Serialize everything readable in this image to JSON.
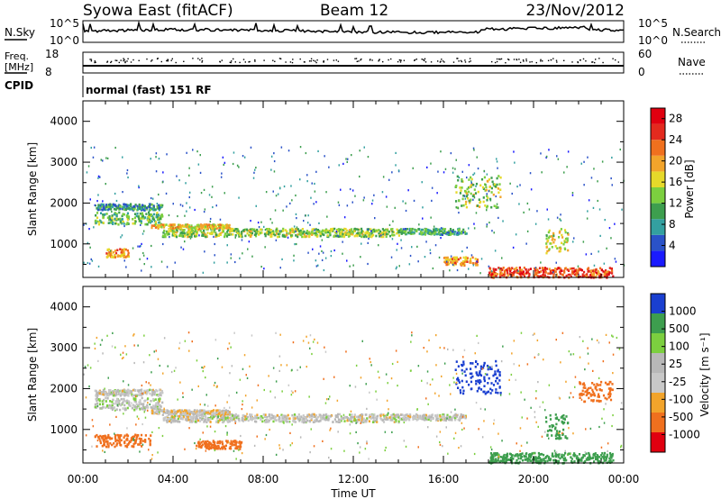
{
  "header": {
    "station": "Syowa East (fitACF)",
    "beam": "Beam 12",
    "date": "23/Nov/2012"
  },
  "summary_panels": {
    "nsky": {
      "label": "N.Sky",
      "ticks": [
        "10^5",
        "10^0"
      ]
    },
    "nsearch": {
      "label": "N.Search",
      "ticks": [
        "10^5",
        "10^0"
      ]
    },
    "freq": {
      "label_line1": "Freq.",
      "label_line2": "[MHz]",
      "ticks": [
        "18",
        "8"
      ]
    },
    "nave": {
      "label": "Nave",
      "ticks": [
        "60",
        "0"
      ]
    },
    "cpid": {
      "label": "CPID",
      "text": "normal (fast) 151 RF"
    }
  },
  "colors": {
    "power_scale": [
      "#1a1aff",
      "#2a52c8",
      "#33a0a0",
      "#3d9e4e",
      "#7ccf3f",
      "#e6d92a",
      "#f2a42b",
      "#f0701e",
      "#e32a1e",
      "#e00010"
    ],
    "velocity_scale": [
      "#e00010",
      "#f0701e",
      "#f2a42b",
      "#c8c8c8",
      "#b8b8b8",
      "#7ccf3f",
      "#3d9e4e",
      "#1a3fd0"
    ]
  },
  "chart_data": [
    {
      "type": "heatmap",
      "title": "",
      "xlabel": "",
      "ylabel": "Slant Range [km]",
      "xlim": [
        "00:00",
        "24:00"
      ],
      "ylim": [
        180,
        4500
      ],
      "x_ticks": [
        "00:00",
        "04:00",
        "08:00",
        "12:00",
        "16:00",
        "20:00",
        "00:00"
      ],
      "y_ticks": [
        1000,
        2000,
        3000,
        4000
      ],
      "colorbar": {
        "label": "Power [dB]",
        "ticks": [
          4,
          8,
          12,
          16,
          20,
          24,
          28
        ],
        "range": [
          0,
          30
        ]
      },
      "bands": [
        {
          "t_start": 0.5,
          "t_end": 3.5,
          "r_low": 1500,
          "r_high": 1800,
          "value": 12
        },
        {
          "t_start": 3.5,
          "t_end": 14.0,
          "r_low": 1200,
          "r_high": 1400,
          "value": 14
        },
        {
          "t_start": 3.0,
          "t_end": 6.5,
          "r_low": 1400,
          "r_high": 1500,
          "value": 18
        },
        {
          "t_start": 14.0,
          "t_end": 17.0,
          "r_low": 1250,
          "r_high": 1400,
          "value": 10
        },
        {
          "t_start": 0.5,
          "t_end": 3.5,
          "r_low": 1850,
          "r_high": 2000,
          "value": 8
        },
        {
          "t_start": 1.0,
          "t_end": 2.0,
          "r_low": 700,
          "r_high": 900,
          "value": 20
        },
        {
          "t_start": 16.5,
          "t_end": 18.5,
          "r_low": 1900,
          "r_high": 2700,
          "value": 14
        },
        {
          "t_start": 18.0,
          "t_end": 23.5,
          "r_low": 200,
          "r_high": 450,
          "value": 24
        },
        {
          "t_start": 20.5,
          "t_end": 21.5,
          "r_low": 800,
          "r_high": 1400,
          "value": 16
        },
        {
          "t_start": 16.0,
          "t_end": 17.5,
          "r_low": 500,
          "r_high": 700,
          "value": 20
        }
      ]
    },
    {
      "type": "heatmap",
      "title": "",
      "xlabel": "Time UT",
      "ylabel": "Slant Range [km]",
      "xlim": [
        "00:00",
        "24:00"
      ],
      "ylim": [
        180,
        4500
      ],
      "x_ticks": [
        "00:00",
        "04:00",
        "08:00",
        "12:00",
        "16:00",
        "20:00",
        "00:00"
      ],
      "y_ticks": [
        1000,
        2000,
        3000,
        4000
      ],
      "colorbar": {
        "label": "Velocity [m s⁻¹]",
        "ticks": [
          1000,
          500,
          100,
          25,
          -25,
          -100,
          -500,
          -1000
        ]
      },
      "bands": [
        {
          "t_start": 0.5,
          "t_end": 3.5,
          "r_low": 1500,
          "r_high": 1800,
          "value": 10
        },
        {
          "t_start": 3.5,
          "t_end": 14.0,
          "r_low": 1200,
          "r_high": 1400,
          "value": 0
        },
        {
          "t_start": 3.0,
          "t_end": 6.5,
          "r_low": 1400,
          "r_high": 1500,
          "value": -10
        },
        {
          "t_start": 14.0,
          "t_end": 17.0,
          "r_low": 1250,
          "r_high": 1400,
          "value": 0
        },
        {
          "t_start": 0.5,
          "t_end": 3.5,
          "r_low": 1850,
          "r_high": 2000,
          "value": 0
        },
        {
          "t_start": 0.5,
          "t_end": 3.0,
          "r_low": 600,
          "r_high": 900,
          "value": -300
        },
        {
          "t_start": 5.0,
          "t_end": 7.0,
          "r_low": 550,
          "r_high": 750,
          "value": -200
        },
        {
          "t_start": 16.5,
          "t_end": 18.5,
          "r_low": 1900,
          "r_high": 2700,
          "value": 600
        },
        {
          "t_start": 18.0,
          "t_end": 23.5,
          "r_low": 200,
          "r_high": 450,
          "value": 200
        },
        {
          "t_start": 20.5,
          "t_end": 21.5,
          "r_low": 800,
          "r_high": 1400,
          "value": 150
        },
        {
          "t_start": 22.0,
          "t_end": 23.5,
          "r_low": 1700,
          "r_high": 2200,
          "value": -150
        }
      ]
    }
  ]
}
